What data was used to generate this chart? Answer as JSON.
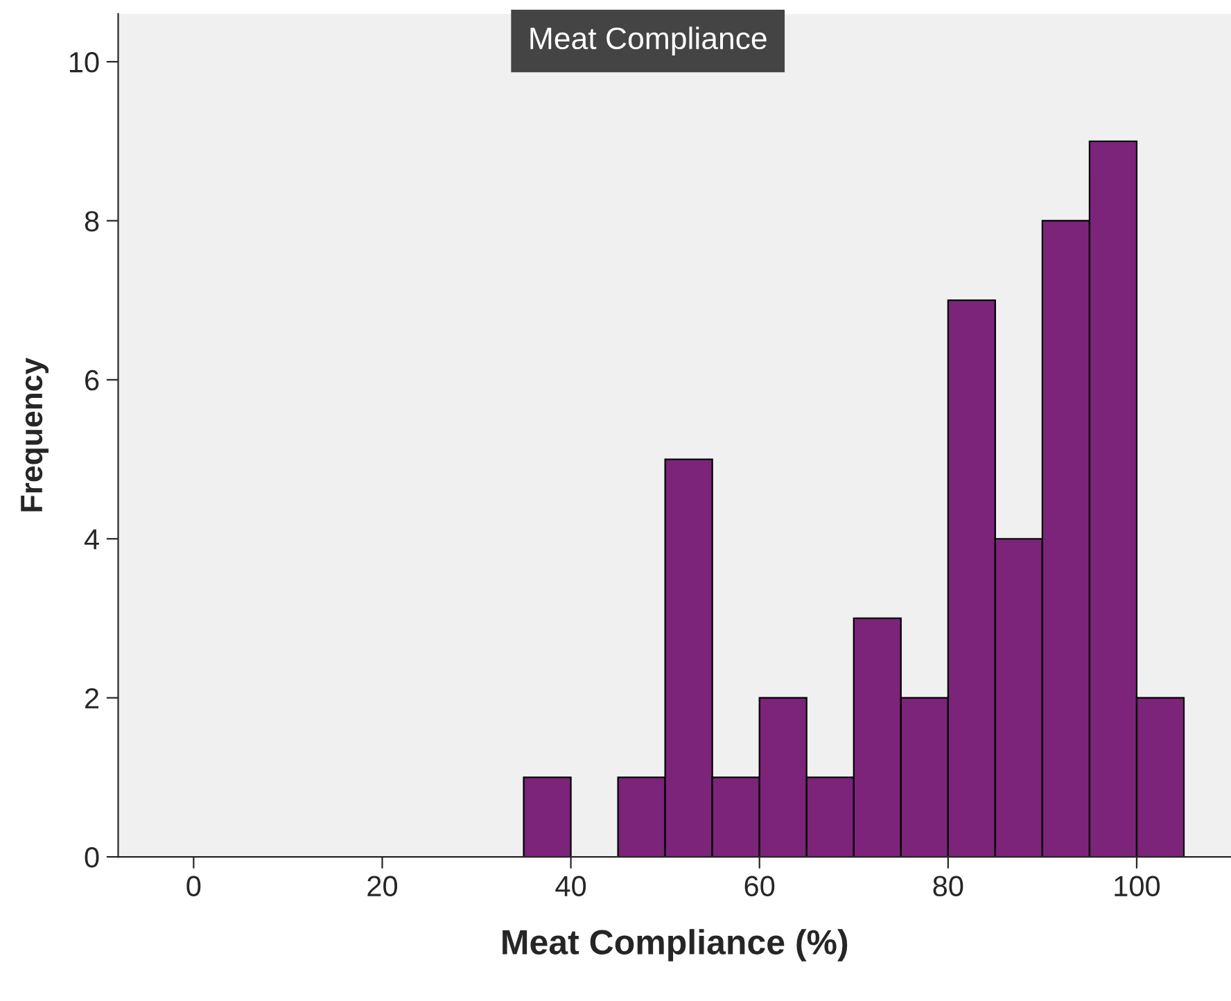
{
  "chart_data": {
    "type": "histogram",
    "title": "Meat Compliance",
    "xlabel": "Meat Compliance (%)",
    "ylabel": "Frequency",
    "bins": [
      35,
      40,
      45,
      50,
      55,
      60,
      65,
      70,
      75,
      80,
      85,
      90,
      95,
      100,
      105
    ],
    "values": [
      1,
      0,
      1,
      5,
      1,
      2,
      1,
      3,
      2,
      7,
      4,
      8,
      9,
      2
    ],
    "color": "#7b2479",
    "xlim": [
      -8,
      110
    ],
    "xticks": [
      0,
      20,
      40,
      60,
      80,
      100
    ],
    "ylim": [
      0,
      10.6
    ],
    "yticks": [
      0,
      2,
      4,
      6,
      8,
      10
    ],
    "grid": false
  }
}
